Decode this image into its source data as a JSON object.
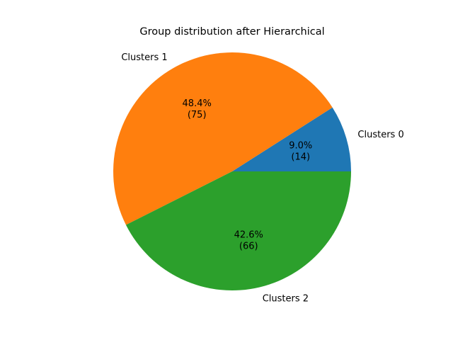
{
  "chart_data": {
    "type": "pie",
    "title": "Group distribution after Hierarchical",
    "labels": [
      "Clusters 0",
      "Clusters 1",
      "Clusters 2"
    ],
    "values": [
      14,
      75,
      66
    ],
    "percent_labels": [
      "9.0%",
      "48.4%",
      "42.6%"
    ],
    "count_labels": [
      "(14)",
      "(75)",
      "(66)"
    ],
    "colors": [
      "#1f77b4",
      "#ff7f0e",
      "#2ca02c"
    ],
    "start_angle": 0,
    "direction": "counterclockwise",
    "legend": "none"
  }
}
